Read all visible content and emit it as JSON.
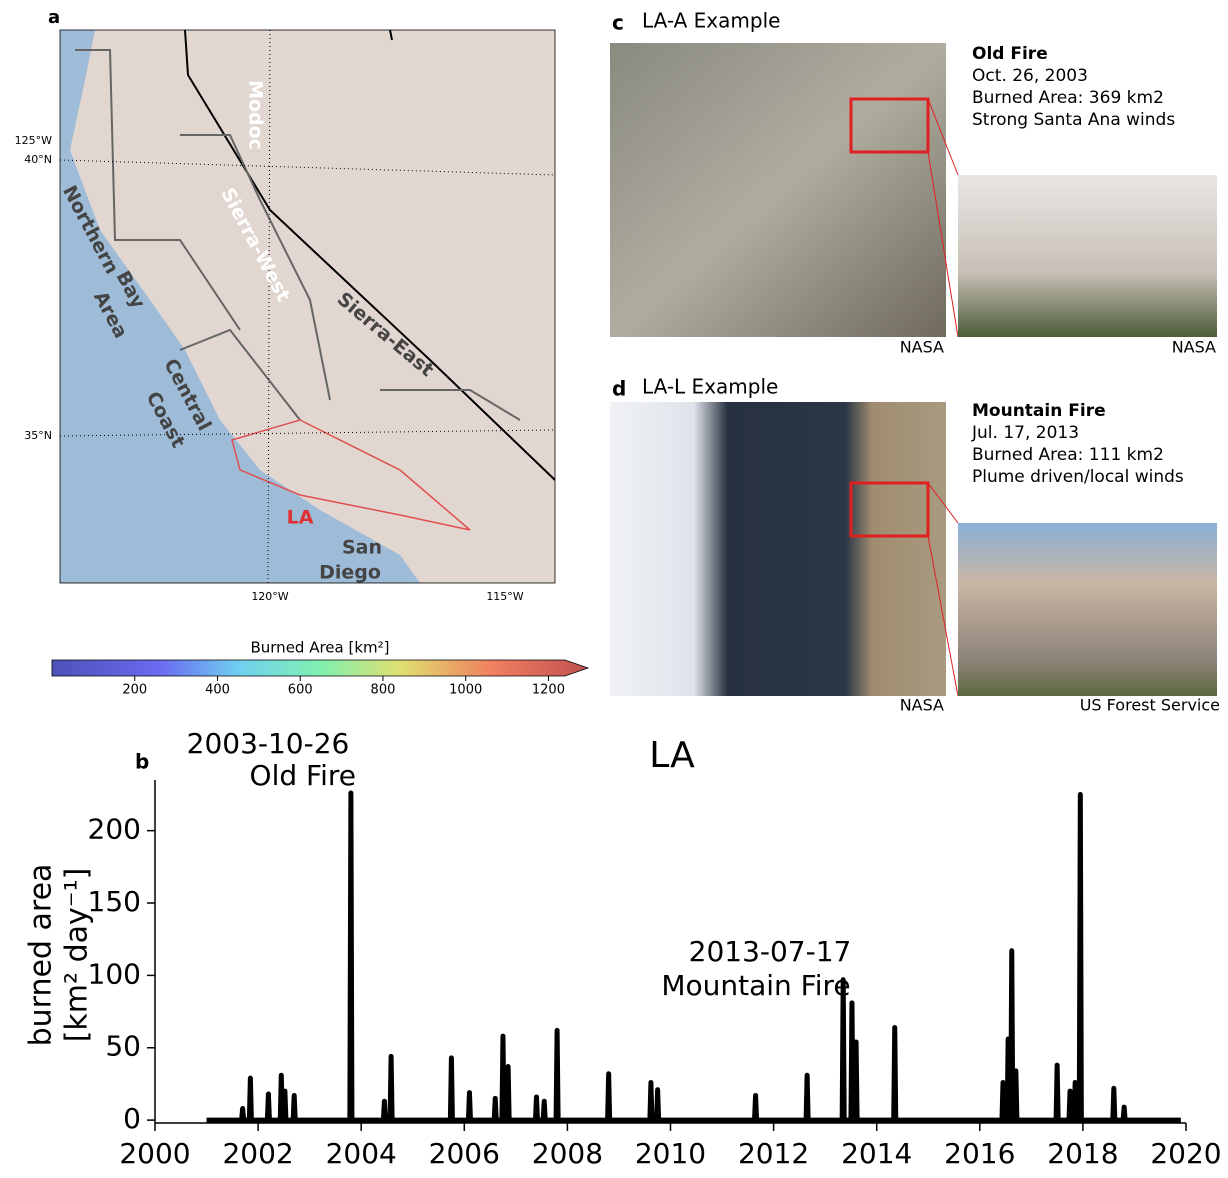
{
  "map": {
    "label": "a",
    "lon_labels": [
      "125°W",
      "120°W",
      "115°W"
    ],
    "lat_labels": [
      "40°N",
      "35°N"
    ],
    "regions": [
      "Modoc",
      "Sierra-West",
      "Northern",
      "Bay",
      "Area",
      "Central",
      "Coast",
      "Sierra-East",
      "LA",
      "San",
      "Diego"
    ],
    "colorbar": {
      "label": "Burned Area [km²]",
      "lim": [
        0,
        1240
      ],
      "ticks": [
        200,
        400,
        600,
        800,
        1000,
        1200
      ]
    }
  },
  "examples": [
    {
      "label": "c",
      "title": "LA-A Example",
      "fire": "Old Fire",
      "date": "Oct. 26, 2003",
      "area": "Burned Area: 369 km2",
      "winds": "Strong Santa Ana winds",
      "credits": [
        "NASA",
        "NASA"
      ]
    },
    {
      "label": "d",
      "title": "LA-L Example",
      "fire": "Mountain Fire",
      "date": "Jul. 17, 2013",
      "area": "Burned Area: 111 km2",
      "winds": "Plume driven/local winds",
      "credits": [
        "NASA",
        "US Forest Service"
      ]
    }
  ],
  "chart_data": {
    "type": "line",
    "panel_label": "b",
    "title": "LA",
    "y_label": [
      "burned area",
      "[km² day⁻¹]"
    ],
    "annotations": [
      [
        "2003-10-26",
        "Old Fire"
      ],
      [
        "2013-07-17",
        "Mountain Fire"
      ]
    ],
    "xlim": [
      2000,
      2020
    ],
    "xticks": [
      2000,
      2002,
      2004,
      2006,
      2008,
      2010,
      2012,
      2014,
      2016,
      2018,
      2020
    ],
    "ylim": [
      -2,
      235
    ],
    "yticks": [
      0,
      50,
      100,
      150,
      200
    ],
    "series": [
      {
        "color": "#000000",
        "x": [
          2001.0,
          2001.68,
          2001.7,
          2001.72,
          2001.83,
          2001.85,
          2001.87,
          2002.18,
          2002.2,
          2002.22,
          2002.43,
          2002.45,
          2002.47,
          2002.5,
          2002.52,
          2002.54,
          2002.68,
          2002.7,
          2002.72,
          2003.78,
          2003.8,
          2003.82,
          2004.43,
          2004.45,
          2004.47,
          2004.56,
          2004.58,
          2004.6,
          2005.73,
          2005.75,
          2005.77,
          2006.08,
          2006.1,
          2006.12,
          2006.58,
          2006.6,
          2006.62,
          2006.73,
          2006.75,
          2006.77,
          2006.83,
          2006.85,
          2006.87,
          2007.38,
          2007.4,
          2007.42,
          2007.53,
          2007.55,
          2007.57,
          2007.78,
          2007.8,
          2007.82,
          2008.78,
          2008.8,
          2008.82,
          2009.6,
          2009.62,
          2009.64,
          2009.73,
          2009.75,
          2009.77,
          2011.63,
          2011.65,
          2011.67,
          2012.63,
          2012.65,
          2012.67,
          2013.33,
          2013.35,
          2013.37,
          2013.5,
          2013.52,
          2013.54,
          2013.58,
          2013.6,
          2013.62,
          2014.33,
          2014.35,
          2014.37,
          2016.43,
          2016.45,
          2016.47,
          2016.53,
          2016.55,
          2016.57,
          2016.6,
          2016.62,
          2016.64,
          2016.68,
          2016.7,
          2016.72,
          2017.48,
          2017.5,
          2017.52,
          2017.73,
          2017.75,
          2017.77,
          2017.83,
          2017.85,
          2017.87,
          2017.93,
          2017.95,
          2017.97,
          2018.58,
          2018.6,
          2018.62,
          2018.78,
          2018.8,
          2018.82,
          2019.9
        ],
        "values": [
          0,
          0,
          8,
          0,
          0,
          29,
          0,
          0,
          18,
          0,
          0,
          31,
          0,
          0,
          20,
          0,
          0,
          17,
          0,
          0,
          226,
          0,
          0,
          13,
          0,
          0,
          44,
          0,
          0,
          43,
          0,
          0,
          19,
          0,
          0,
          15,
          0,
          0,
          58,
          0,
          0,
          37,
          0,
          0,
          16,
          0,
          0,
          13,
          0,
          0,
          62,
          0,
          0,
          32,
          0,
          0,
          26,
          0,
          0,
          21,
          0,
          0,
          17,
          0,
          0,
          31,
          0,
          0,
          97,
          0,
          0,
          81,
          0,
          0,
          54,
          0,
          0,
          64,
          0,
          0,
          26,
          0,
          0,
          56,
          0,
          0,
          117,
          0,
          0,
          34,
          0,
          0,
          38,
          0,
          0,
          20,
          0,
          0,
          26,
          0,
          0,
          225,
          0,
          0,
          22,
          0,
          0,
          9,
          0,
          0
        ]
      }
    ]
  }
}
